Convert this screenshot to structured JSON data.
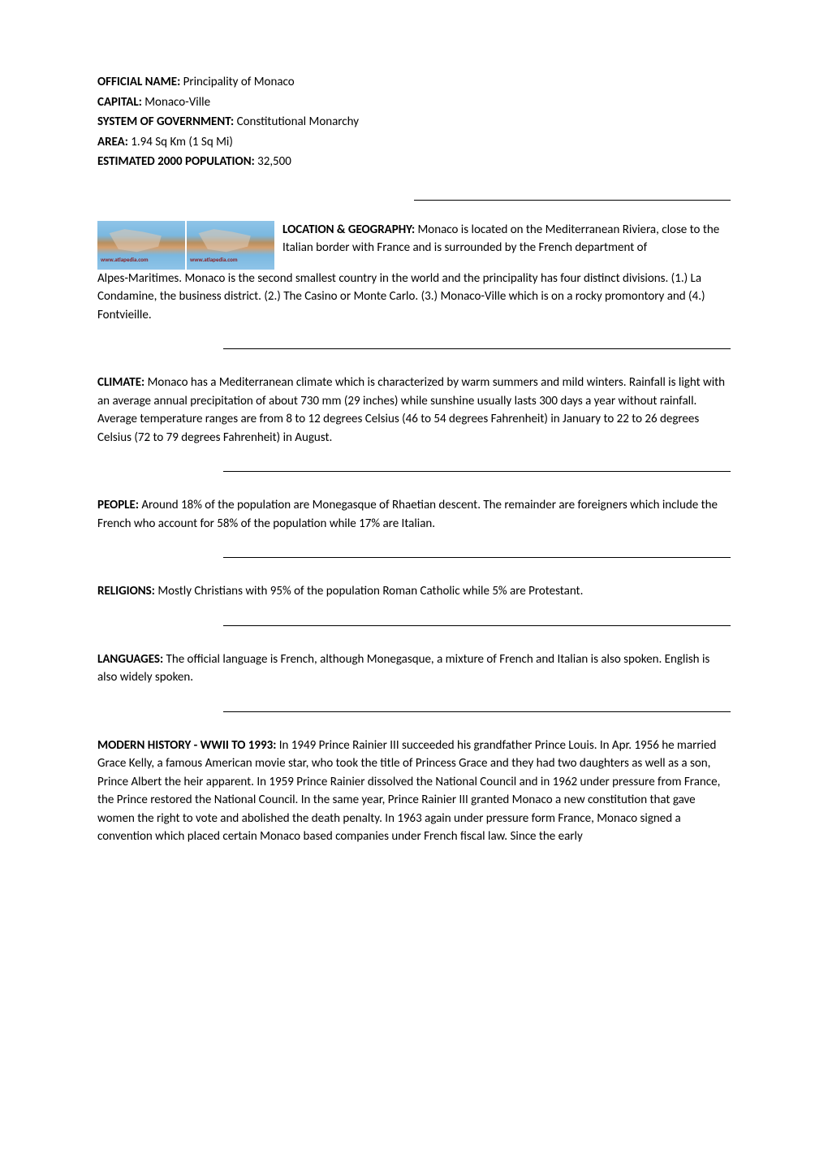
{
  "header": {
    "officialNameLabel": "OFFICIAL NAME:",
    "officialNameValue": " Principality of Monaco",
    "capitalLabel": "CAPITAL:",
    "capitalValue": " Monaco-Ville",
    "systemLabel": "SYSTEM OF GOVERNMENT:",
    "systemValue": " Constitutional Monarchy",
    "areaLabel": "AREA:",
    "areaValue": " 1.94 Sq Km (1 Sq Mi)",
    "populationLabel": "ESTIMATED 2000 POPULATION:",
    "populationValue": " 32,500"
  },
  "geography": {
    "label": "LOCATION & GEOGRAPHY:",
    "textTop": " Monaco is located on the Mediterranean Riviera, close to the Italian border with France and is surrounded by the French department of",
    "textBottom": "Alpes-Maritimes. Monaco is the second smallest country in the world and the principality has four distinct divisions. (1.) La Condamine, the business district. (2.) The Casino or Monte Carlo. (3.) Monaco-Ville which is on a rocky promontory and (4.) Fontvieille.",
    "watermark": "www.atlapedia.com"
  },
  "climate": {
    "label": "CLIMATE:",
    "text": " Monaco has a Mediterranean climate which is characterized by warm summers and mild winters. Rainfall is light with an average annual precipitation of about 730 mm (29 inches) while sunshine usually lasts 300 days a year without rainfall. Average temperature ranges are from 8 to 12 degrees Celsius (46 to 54 degrees Fahrenheit) in January to 22 to 26 degrees Celsius (72 to 79 degrees Fahrenheit) in August."
  },
  "people": {
    "label": "PEOPLE:",
    "text": " Around 18% of the population are Monegasque of Rhaetian descent. The remainder are foreigners which include the French who account for 58% of the population while 17% are Italian."
  },
  "religions": {
    "label": "RELIGIONS:",
    "text": " Mostly Christians with 95% of the population Roman Catholic while 5% are Protestant."
  },
  "languages": {
    "label": "LANGUAGES:",
    "text": " The official language is French, although Monegasque, a mixture of French and Italian is also spoken. English is also widely spoken."
  },
  "history": {
    "label": "MODERN HISTORY - WWII TO 1993:",
    "text": " In 1949 Prince Rainier III succeeded his grandfather Prince Louis. In Apr. 1956 he married Grace Kelly, a famous American movie star, who took the title of Princess Grace and they had two daughters as well as a son, Prince Albert the heir apparent. In 1959 Prince Rainier dissolved the National Council and in 1962 under pressure from France, the Prince restored the National Council. In the same year, Prince Rainier III granted Monaco a new constitution that gave women the right to vote and abolished the death penalty. In 1963 again under pressure form France, Monaco signed a convention which placed certain Monaco based companies under French fiscal law. Since the early"
  }
}
